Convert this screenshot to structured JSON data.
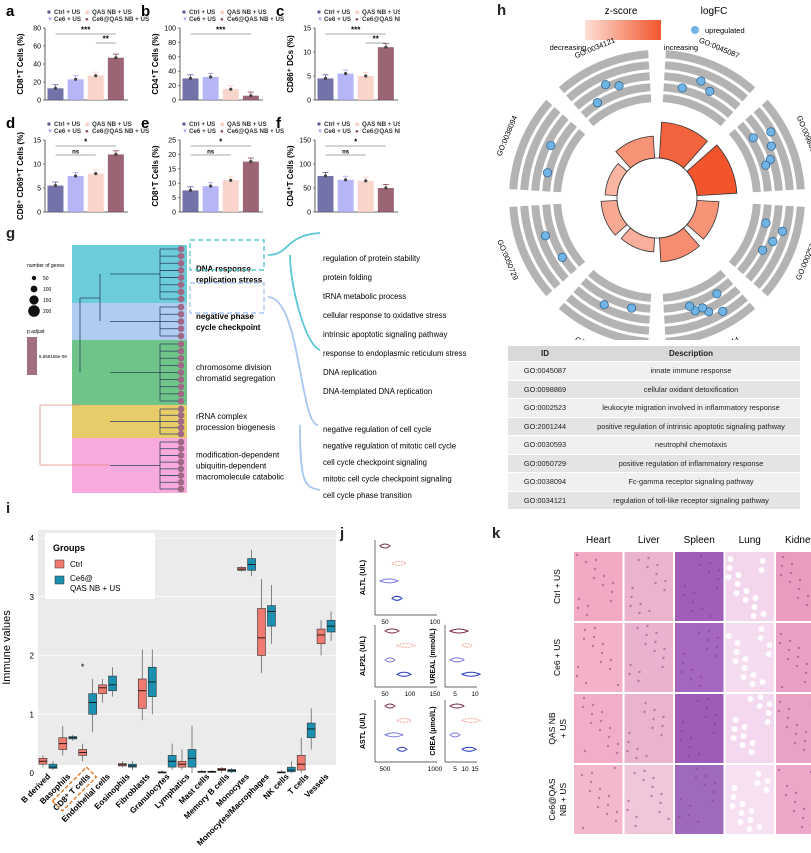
{
  "panel_labels": {
    "a": "a",
    "b": "b",
    "c": "c",
    "d": "d",
    "e": "e",
    "f": "f",
    "g": "g",
    "h": "h",
    "i": "i",
    "j": "j",
    "k": "k"
  },
  "colors": {
    "ctrl": "#5b5b9b",
    "ce6": "#a9a9f5",
    "qas": "#f8cfc4",
    "combo": "#8b4a5a",
    "cyan": "#5cc7d6",
    "blue": "#a9c6f0",
    "green": "#5fbf7c",
    "yellow": "#e6c65a",
    "pink": "#f7a1d8",
    "orange": "#f47f55"
  },
  "bar_legend": [
    "Ctrl + US",
    "Ce6 + US",
    "QAS NB + US",
    "Ce6@QAS NB + US"
  ],
  "chart_data": [
    {
      "id": "a",
      "type": "bar",
      "ylabel": "CD8⁺T Cells (%)",
      "ylim": [
        0,
        80
      ],
      "ticks": [
        0,
        20,
        40,
        60,
        80
      ],
      "categories": [
        "Ctrl + US",
        "Ce6 + US",
        "QAS NB + US",
        "Ce6@QAS NB + US"
      ],
      "values": [
        13,
        23,
        27,
        47
      ],
      "sig": [
        {
          "from": 0,
          "to": 3,
          "label": "***"
        },
        {
          "from": 2,
          "to": 3,
          "label": "**"
        }
      ]
    },
    {
      "id": "b",
      "type": "bar",
      "ylabel": "CD4⁺T Cells (%)",
      "ylim": [
        0,
        100
      ],
      "ticks": [
        0,
        20,
        40,
        60,
        80,
        100
      ],
      "categories": [
        "Ctrl + US",
        "Ce6 + US",
        "QAS NB + US",
        "Ce6@QAS NB + US"
      ],
      "values": [
        30,
        32,
        15,
        6
      ],
      "sig": [
        {
          "from": 0,
          "to": 3,
          "label": "***"
        }
      ]
    },
    {
      "id": "c",
      "type": "bar",
      "ylabel": "CD86⁺ DCs (%)",
      "ylim": [
        0,
        15
      ],
      "ticks": [
        0,
        5,
        10,
        15
      ],
      "categories": [
        "Ctrl + US",
        "Ce6 + US",
        "QAS NB + US",
        "Ce6@QAS NB + US"
      ],
      "values": [
        4.5,
        5.5,
        5,
        11
      ],
      "sig": [
        {
          "from": 0,
          "to": 3,
          "label": "***"
        },
        {
          "from": 2,
          "to": 3,
          "label": "**"
        }
      ]
    },
    {
      "id": "d",
      "type": "bar",
      "ylabel": "CD8⁺ CD69⁺T Cells (%)",
      "ylim": [
        0,
        15
      ],
      "ticks": [
        0,
        5,
        10,
        15
      ],
      "categories": [
        "Ctrl + US",
        "Ce6 + US",
        "QAS NB + US",
        "Ce6@QAS NB + US"
      ],
      "values": [
        5.5,
        7.5,
        8,
        12
      ],
      "sig": [
        {
          "from": 0,
          "to": 3,
          "label": "*"
        },
        {
          "from": 0,
          "to": 2,
          "label": "ns"
        }
      ]
    },
    {
      "id": "e",
      "type": "bar",
      "ylabel": "CD8⁺T Cells (%)",
      "ylim": [
        0,
        25
      ],
      "ticks": [
        0,
        5,
        10,
        15,
        20,
        25
      ],
      "categories": [
        "Ctrl + US",
        "Ce6 + US",
        "QAS NB + US",
        "Ce6@QAS NB + US"
      ],
      "values": [
        7.5,
        9,
        11,
        17.5
      ],
      "sig": [
        {
          "from": 0,
          "to": 3,
          "label": "*"
        },
        {
          "from": 0,
          "to": 2,
          "label": "ns"
        }
      ]
    },
    {
      "id": "f",
      "type": "bar",
      "ylabel": "CD4⁺T Cells (%)",
      "ylim": [
        0,
        150
      ],
      "ticks": [
        0,
        50,
        100,
        150
      ],
      "categories": [
        "Ctrl + US",
        "Ce6 + US",
        "QAS NB + US",
        "Ce6@QAS NB + US"
      ],
      "values": [
        75,
        67,
        65,
        50
      ],
      "sig": [
        {
          "from": 0,
          "to": 3,
          "label": "*"
        },
        {
          "from": 0,
          "to": 2,
          "label": "ns"
        }
      ]
    },
    {
      "id": "i",
      "type": "boxplot",
      "ylabel": "Immune values",
      "ylim": [
        0,
        4
      ],
      "ticks": [
        0,
        1,
        2,
        3,
        4
      ],
      "categories": [
        "B derived",
        "Basophils",
        "CD8⁺ T cells",
        "Endothelial cells",
        "Eosinophils",
        "Fibroblasts",
        "Granulocytes",
        "Lymphatics",
        "Mast cells",
        "Memory B cells",
        "Monocytes",
        "Monocytes/Macrophages",
        "NK cells",
        "T cells",
        "Vessels"
      ],
      "series": [
        {
          "name": "Ctrl",
          "stats": [
            [
              0.1,
              0.15,
              0.2,
              0.25,
              0.3
            ],
            [
              0.3,
              0.4,
              0.5,
              0.6,
              0.8
            ],
            [
              0.2,
              0.3,
              0.35,
              0.4,
              0.5
            ],
            [
              1.2,
              1.35,
              1.45,
              1.5,
              1.6
            ],
            [
              0.1,
              0.12,
              0.14,
              0.16,
              0.2
            ],
            [
              0.9,
              1.1,
              1.4,
              1.6,
              2.1
            ],
            [
              0.0,
              0.0,
              0.01,
              0.02,
              0.05
            ],
            [
              0.05,
              0.1,
              0.15,
              0.2,
              0.4
            ],
            [
              0.0,
              0.01,
              0.02,
              0.03,
              0.05
            ],
            [
              0.0,
              0.04,
              0.06,
              0.08,
              0.1
            ],
            [
              3.43,
              3.45,
              3.47,
              3.5,
              3.52
            ],
            [
              1.7,
              2.0,
              2.3,
              2.8,
              3.3
            ],
            [
              0.0,
              0.0,
              0.01,
              0.02,
              0.05
            ],
            [
              0.0,
              0.05,
              0.15,
              0.3,
              0.6
            ],
            [
              2.0,
              2.2,
              2.35,
              2.45,
              2.6
            ]
          ]
        },
        {
          "name": "Ce6@QAS NB + US",
          "stats": [
            [
              0.05,
              0.08,
              0.1,
              0.15,
              0.2
            ],
            [
              0.55,
              0.58,
              0.6,
              0.62,
              0.65
            ],
            [
              0.7,
              1.0,
              1.2,
              1.35,
              1.6
            ],
            [
              1.3,
              1.4,
              1.5,
              1.65,
              1.8
            ],
            [
              0.05,
              0.1,
              0.12,
              0.15,
              0.2
            ],
            [
              1.0,
              1.3,
              1.55,
              1.8,
              2.1
            ],
            [
              0.05,
              0.1,
              0.2,
              0.3,
              0.5
            ],
            [
              0.0,
              0.1,
              0.25,
              0.4,
              0.8
            ],
            [
              0.0,
              0.01,
              0.02,
              0.03,
              0.05
            ],
            [
              0.0,
              0.02,
              0.04,
              0.06,
              0.08
            ],
            [
              3.35,
              3.45,
              3.55,
              3.65,
              3.8
            ],
            [
              2.2,
              2.5,
              2.75,
              2.85,
              3.2
            ],
            [
              0.0,
              0.02,
              0.05,
              0.1,
              0.2
            ],
            [
              0.4,
              0.6,
              0.75,
              0.85,
              1.1
            ],
            [
              2.25,
              2.4,
              2.5,
              2.6,
              2.75
            ]
          ]
        }
      ],
      "legend_title": "Groups",
      "legend_items": [
        "Ctrl",
        "Ce6@\nQAS NB + US"
      ]
    },
    {
      "id": "j",
      "type": "violin",
      "panels": [
        {
          "label": "ALTL (U/L)",
          "ticks": [
            "50",
            "100"
          ]
        },
        {
          "label": "ALP2L (U/L)",
          "ticks": [
            "50",
            "100",
            "150"
          ]
        },
        {
          "label": "UREAL (mmol/L)",
          "ticks": [
            "5",
            "10"
          ]
        },
        {
          "label": "ASTL (U/L)",
          "ticks": [
            "500",
            "1000"
          ]
        },
        {
          "label": "CREA (μmol/L)",
          "ticks": [
            "5",
            "10",
            "15"
          ]
        }
      ]
    }
  ],
  "g": {
    "legend_genes_title": "number of genes",
    "legend_genes_values": [
      "50",
      "100",
      "150",
      "200"
    ],
    "legend_padj_title": "p.adjust",
    "legend_padj_value": "6.659155e-09",
    "clusters": [
      {
        "label": "DNA response\nreplication stress",
        "bold": true,
        "color": "#5cc7d6"
      },
      {
        "label": "negative phase\ncycle checkpoint",
        "bold": true,
        "color": "#a9c6f0"
      },
      {
        "label": "chromosome division\nchromatid segregation",
        "bold": false,
        "color": "#5fbf7c"
      },
      {
        "label": "rRNA complex\nprocession biogenesis",
        "bold": false,
        "color": "#e6c65a"
      },
      {
        "label": "modification-dependent\nubiquitin-dependent\nmacromolecule catabolic",
        "bold": false,
        "color": "#f7a1d8"
      }
    ],
    "terms_top": [
      "regulation of protein stability",
      "protein folding",
      "tRNA metabolic process",
      "cellular response to oxidative stress",
      "intrinsic apoptotic signaling pathway",
      "response to endoplasmic reticulum stress",
      "DNA replication",
      "DNA-templated DNA replication"
    ],
    "terms_bottom": [
      "negative regulation of cell cycle",
      "negative regulation of mitotic cell cycle",
      "cell cycle checkpoint signaling",
      "mitotic cell cycle checkpoint signaling",
      "cell cycle phase transition"
    ]
  },
  "h": {
    "zscore_label": "z-score",
    "decreasing": "decreasing",
    "increasing": "increasing",
    "logfc_label": "logFC",
    "upregulated": "upregulated",
    "go_labels": [
      "GO:0045087",
      "GO:0098869",
      "GO:0002523",
      "GO:2001244",
      "GO:0030593",
      "GO:0050729",
      "GO:0038094",
      "GO:0034121"
    ],
    "zscores": [
      0.9,
      1.0,
      0.55,
      0.6,
      0.35,
      0.4,
      0.3,
      0.55
    ]
  },
  "table": {
    "headers": [
      "ID",
      "Description"
    ],
    "rows": [
      [
        "GO:0045087",
        "innate immune response"
      ],
      [
        "GO:0098869",
        "cellular oxidant detoxification"
      ],
      [
        "GO:0002523",
        "leukocyte migration involved in inflammatory response"
      ],
      [
        "GO:2001244",
        "positive regulation of intrinsic apoptotic signaling pathway"
      ],
      [
        "GO:0030593",
        "neutrophil chemotaxis"
      ],
      [
        "GO:0050729",
        "positive regulation of inflammatory response"
      ],
      [
        "GO:0038094",
        "Fc-gamma receptor signaling pathway"
      ],
      [
        "GO:0034121",
        "regulation of toll-like receptor signaling pathway"
      ]
    ]
  },
  "k": {
    "columns": [
      "Heart",
      "Liver",
      "Spleen",
      "Lung",
      "Kidney"
    ],
    "rows": [
      "Ctrl + US",
      "Ce6 + US",
      "QAS NB\n+ US",
      "Ce6@QAS\nNB + US"
    ]
  }
}
